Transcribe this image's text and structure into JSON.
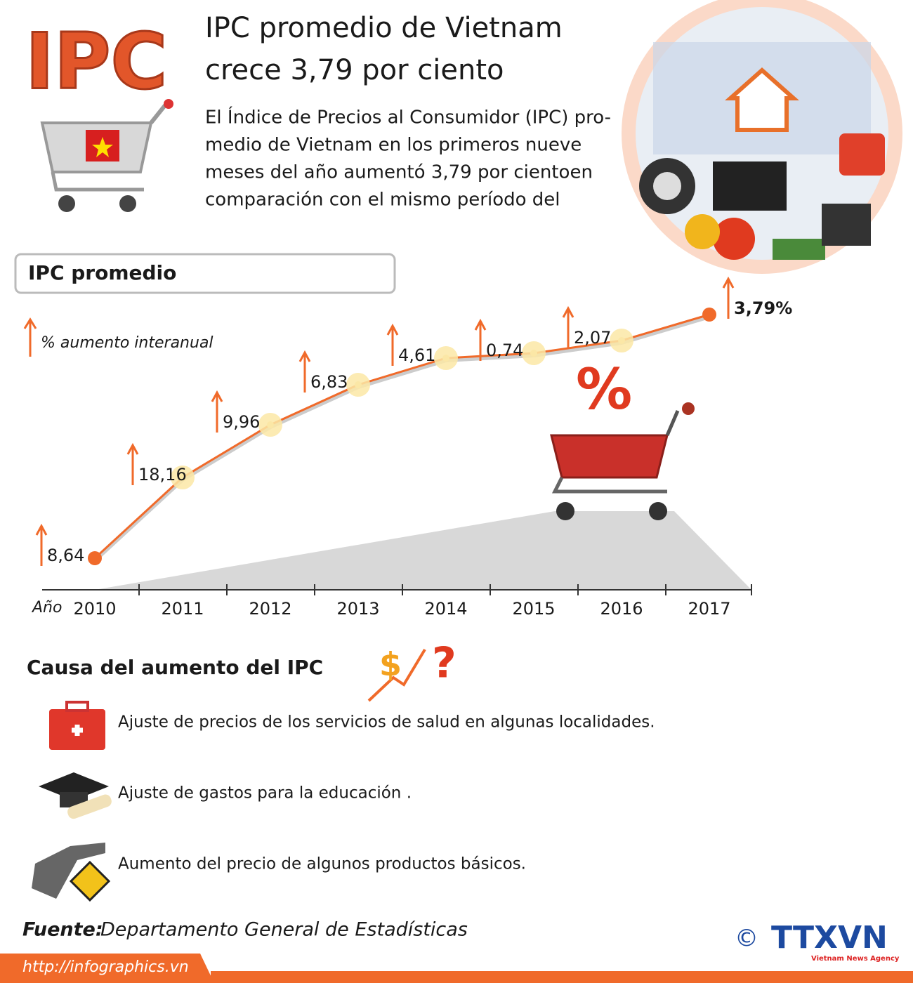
{
  "logo": "IPC",
  "header": {
    "title_lines": [
      "IPC promedio de Vietnam",
      "crece  3,79 por ciento"
    ],
    "body_lines": [
      "El Índice de Precios al Consumidor (IPC) pro-",
      "medio de Vietnam en los primeros nueve",
      "meses del año aumentó 3,79 por cientoen",
      "comparación con el mismo período del"
    ]
  },
  "chart_data": {
    "type": "line",
    "title": "IPC promedio",
    "legend": "% aumento interanual",
    "x_label": "Año",
    "categories": [
      "2010",
      "2011",
      "2012",
      "2013",
      "2014",
      "2015",
      "2016",
      "2017"
    ],
    "values": [
      8.64,
      18.16,
      9.96,
      6.83,
      4.61,
      0.74,
      2.07,
      3.79
    ],
    "value_labels": [
      "8,64",
      "18,16",
      "9,96",
      "6,83",
      "4,61",
      "0,74",
      "2,07",
      "3,79%"
    ],
    "color": "#f06a2a"
  },
  "causes": {
    "title": "Causa del aumento del IPC",
    "items": [
      "Ajuste de precios de los servicios de salud en algunas localidades.",
      "Ajuste de gastos para la educación .",
      "Aumento del precio de algunos productos básicos."
    ]
  },
  "footer": {
    "source_label": "Fuente:",
    "source": "Departamento General de Estadísticas",
    "url": "http://infographics.vn",
    "copyright": "©",
    "agency": "TTXVN",
    "agency_sub": "Vietnam News Agency"
  }
}
